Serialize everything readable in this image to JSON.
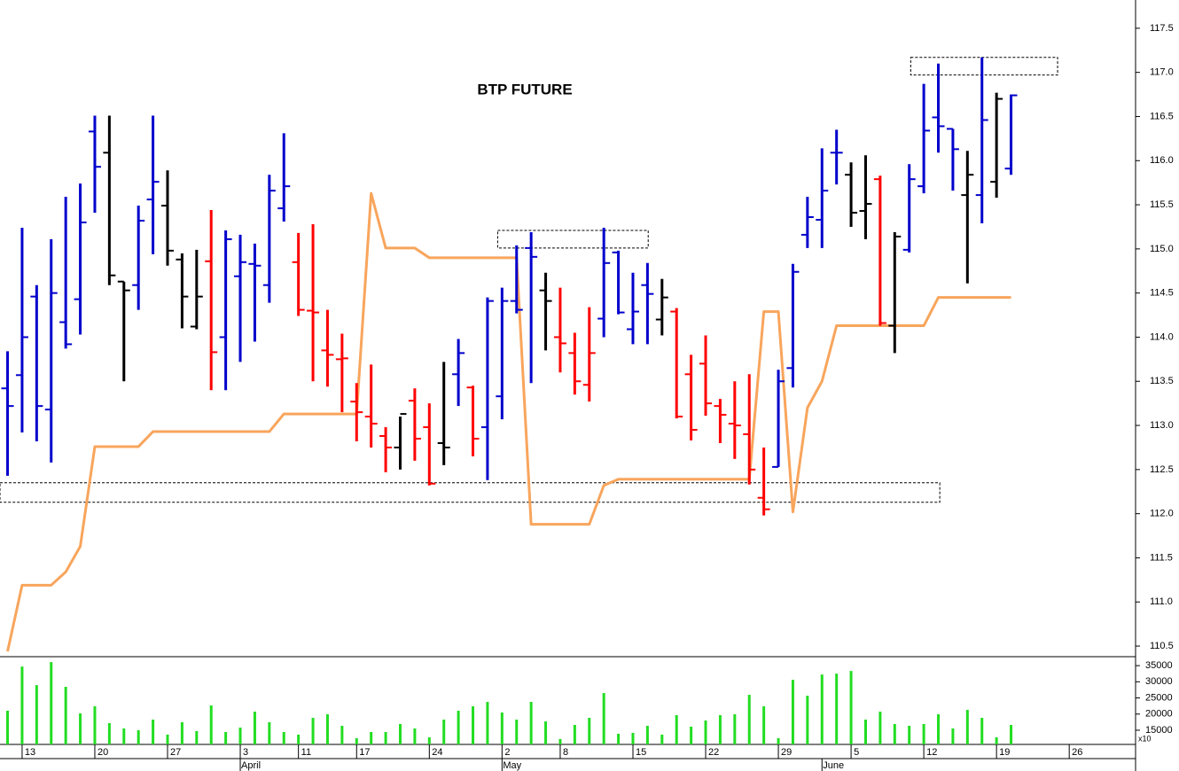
{
  "chart_data": {
    "type": "ohlc",
    "title": "BTP FUTURE",
    "xlim": [
      -0.52,
      77.5
    ],
    "ylim": [
      110.38,
      117.82
    ],
    "yticks": [
      110.5,
      {
        "value": 111,
        "label": "111.0"
      },
      111.5,
      {
        "value": 112,
        "label": "112.0"
      },
      112.5,
      {
        "value": 113,
        "label": "113.0"
      },
      113.5,
      {
        "value": 114,
        "label": "114.0"
      },
      114.5,
      {
        "value": 115,
        "label": "115.0"
      },
      115.5,
      {
        "value": 116,
        "label": "116.0"
      },
      116.5,
      {
        "value": 117,
        "label": "117.0"
      },
      117.5
    ],
    "xticks": [
      {
        "value": 1,
        "label": "13"
      },
      {
        "value": 6,
        "label": "20"
      },
      {
        "value": 11,
        "label": "27"
      },
      {
        "value": 16,
        "label": "3"
      },
      {
        "value": 20,
        "label": "11"
      },
      {
        "value": 24,
        "label": "17"
      },
      {
        "value": 29,
        "label": "24"
      },
      {
        "value": 34,
        "label": "2"
      },
      {
        "value": 38,
        "label": "8"
      },
      {
        "value": 43,
        "label": "15"
      },
      {
        "value": 48,
        "label": "22"
      },
      {
        "value": 53,
        "label": "29"
      },
      {
        "value": 58,
        "label": "5"
      },
      {
        "value": 63,
        "label": "12"
      },
      {
        "value": 68,
        "label": "19"
      },
      {
        "value": 73,
        "label": "26"
      }
    ],
    "month_ticks": [
      {
        "value": 16,
        "label": "April"
      },
      {
        "value": 34,
        "label": "May"
      },
      {
        "value": 56,
        "label": "June"
      }
    ],
    "open": [
      113.42,
      113.57,
      114.46,
      113.18,
      114.17,
      114.43,
      116.33,
      116.09,
      114.63,
      114.59,
      115.56,
      115.49,
      114.88,
      114.12,
      114.86,
      114.0,
      114.69,
      114.83,
      114.59,
      115.46,
      114.85,
      114.3,
      113.85,
      113.75,
      113.27,
      113.1,
      112.88,
      112.75,
      113.28,
      112.98,
      112.8,
      113.58,
      113.43,
      112.98,
      113.33,
      114.41,
      115.01,
      114.53,
      114.0,
      113.82,
      113.46,
      114.21,
      114.96,
      114.09,
      114.59,
      114.2,
      114.29,
      113.58,
      113.7,
      113.22,
      113.02,
      112.9,
      112.18,
      112.53,
      113.65,
      115.16,
      115.33,
      116.09,
      115.84,
      115.43,
      115.79,
      114.13,
      114.99,
      115.71,
      116.49,
      116.36,
      115.61,
      115.61,
      115.76,
      115.91
    ],
    "high": [
      113.84,
      115.24,
      114.59,
      115.11,
      115.59,
      115.74,
      116.51,
      116.51,
      114.63,
      115.49,
      116.51,
      115.89,
      114.95,
      114.99,
      115.44,
      115.21,
      115.16,
      115.06,
      115.84,
      116.31,
      115.18,
      115.28,
      114.31,
      114.04,
      113.48,
      113.69,
      112.98,
      113.1,
      113.42,
      113.25,
      113.72,
      113.98,
      113.45,
      114.45,
      114.56,
      115.04,
      115.19,
      114.73,
      114.56,
      114.05,
      114.34,
      115.24,
      114.98,
      114.73,
      114.84,
      114.66,
      114.33,
      113.8,
      114.02,
      113.3,
      113.5,
      113.58,
      112.75,
      113.63,
      114.83,
      115.59,
      116.14,
      116.35,
      115.98,
      116.06,
      115.83,
      115.19,
      115.96,
      116.87,
      117.1,
      116.36,
      116.11,
      117.17,
      116.77,
      116.75
    ],
    "low": [
      112.43,
      112.92,
      112.82,
      112.58,
      113.87,
      114.03,
      115.41,
      114.59,
      113.5,
      114.31,
      114.94,
      114.81,
      114.1,
      114.09,
      113.4,
      113.4,
      113.72,
      113.95,
      114.39,
      115.31,
      114.24,
      113.5,
      113.44,
      113.15,
      112.82,
      112.75,
      112.47,
      112.5,
      112.6,
      112.32,
      112.55,
      113.22,
      112.65,
      112.38,
      113.07,
      114.27,
      113.48,
      113.85,
      113.6,
      113.35,
      113.27,
      114.0,
      114.26,
      113.92,
      113.92,
      114.02,
      113.08,
      112.83,
      113.11,
      112.8,
      112.62,
      112.33,
      111.98,
      112.53,
      113.43,
      115.01,
      115.01,
      115.73,
      115.25,
      115.11,
      114.13,
      113.82,
      114.96,
      115.63,
      116.09,
      115.66,
      114.61,
      115.29,
      115.58,
      115.84
    ],
    "close": [
      113.22,
      114.0,
      113.22,
      114.5,
      113.92,
      115.3,
      115.93,
      114.7,
      114.53,
      115.32,
      115.76,
      114.98,
      114.46,
      114.46,
      113.83,
      115.11,
      114.85,
      114.81,
      115.66,
      115.71,
      114.31,
      114.28,
      113.8,
      113.76,
      113.15,
      113.02,
      112.75,
      113.13,
      112.85,
      112.34,
      112.75,
      113.82,
      112.85,
      114.41,
      114.41,
      114.31,
      114.91,
      114.41,
      113.93,
      113.5,
      113.82,
      114.84,
      114.28,
      114.29,
      114.49,
      114.45,
      113.1,
      112.95,
      113.25,
      113.12,
      113.0,
      112.5,
      112.05,
      113.5,
      114.74,
      115.36,
      115.66,
      116.09,
      115.41,
      115.51,
      114.16,
      115.14,
      115.79,
      116.34,
      116.39,
      116.13,
      115.84,
      116.46,
      116.7,
      116.74
    ],
    "colors": [
      "#0000cc",
      "#0000cc",
      "#0000cc",
      "#0000cc",
      "#0000cc",
      "#0000cc",
      "#0000cc",
      "#000000",
      "#000000",
      "#0000cc",
      "#0000cc",
      "#000000",
      "#000000",
      "#000000",
      "#ff0000",
      "#0000cc",
      "#0000cc",
      "#0000cc",
      "#0000cc",
      "#0000cc",
      "#ff0000",
      "#ff0000",
      "#ff0000",
      "#ff0000",
      "#ff0000",
      "#ff0000",
      "#ff0000",
      "#000000",
      "#ff0000",
      "#ff0000",
      "#000000",
      "#0000cc",
      "#ff0000",
      "#0000cc",
      "#0000cc",
      "#0000cc",
      "#0000cc",
      "#000000",
      "#ff0000",
      "#ff0000",
      "#ff0000",
      "#0000cc",
      "#0000cc",
      "#0000cc",
      "#0000cc",
      "#000000",
      "#ff0000",
      "#ff0000",
      "#ff0000",
      "#ff0000",
      "#ff0000",
      "#ff0000",
      "#ff0000",
      "#0000cc",
      "#0000cc",
      "#0000cc",
      "#0000cc",
      "#0000cc",
      "#000000",
      "#000000",
      "#ff0000",
      "#000000",
      "#0000cc",
      "#0000cc",
      "#0000cc",
      "#0000cc",
      "#000000",
      "#0000cc",
      "#000000",
      "#0000cc"
    ],
    "indicator": {
      "color": "#f8a55c",
      "values": [
        110.44,
        111.19,
        111.19,
        111.19,
        111.34,
        111.63,
        112.76,
        112.76,
        112.76,
        112.76,
        112.93,
        112.93,
        112.93,
        112.93,
        112.93,
        112.93,
        112.93,
        112.93,
        112.93,
        113.13,
        113.13,
        113.13,
        113.13,
        113.13,
        113.13,
        115.63,
        115.01,
        115.01,
        115.01,
        114.9,
        114.9,
        114.9,
        114.9,
        114.9,
        114.9,
        114.9,
        111.88,
        111.88,
        111.88,
        111.88,
        111.88,
        112.32,
        112.39,
        112.39,
        112.39,
        112.39,
        112.39,
        112.39,
        112.39,
        112.39,
        112.39,
        112.39,
        114.29,
        114.29,
        112.02,
        113.2,
        113.5,
        114.13,
        114.13,
        114.13,
        114.13,
        114.13,
        114.13,
        114.13,
        114.45,
        114.45,
        114.45,
        114.45,
        114.45,
        114.45
      ]
    },
    "zones": [
      {
        "x": [
          62.1,
          72.2
        ],
        "y": [
          116.97,
          117.17
        ]
      },
      {
        "x": [
          33.7,
          44.05
        ],
        "y": [
          115.01,
          115.21
        ]
      },
      {
        "x": [
          -0.52,
          64.1
        ],
        "y": [
          112.13,
          112.35
        ]
      }
    ],
    "volume": {
      "color": "#22dd22",
      "unit_label": "x10",
      "ylim": [
        10600,
        37500
      ],
      "yticks": [
        15000,
        20000,
        25000,
        30000,
        35000
      ],
      "values": [
        21030,
        34730,
        28970,
        36100,
        28430,
        20210,
        22400,
        17190,
        15550,
        15000,
        18290,
        13630,
        17470,
        14730,
        22670,
        14450,
        15820,
        20750,
        17470,
        14450,
        13630,
        18840,
        19930,
        16370,
        12530,
        14450,
        14450,
        16920,
        15550,
        12800,
        18290,
        21030,
        22400,
        23770,
        20480,
        18290,
        23770,
        17740,
        12260,
        16640,
        18840,
        26510,
        13900,
        14180,
        16370,
        13630,
        19660,
        16100,
        18010,
        19660,
        19930,
        25960,
        22400,
        12530,
        30620,
        25690,
        32260,
        32540,
        33360,
        18290,
        20750,
        16920,
        16370,
        16920,
        19930,
        15550,
        21300,
        18840,
        12800,
        16640
      ]
    }
  }
}
